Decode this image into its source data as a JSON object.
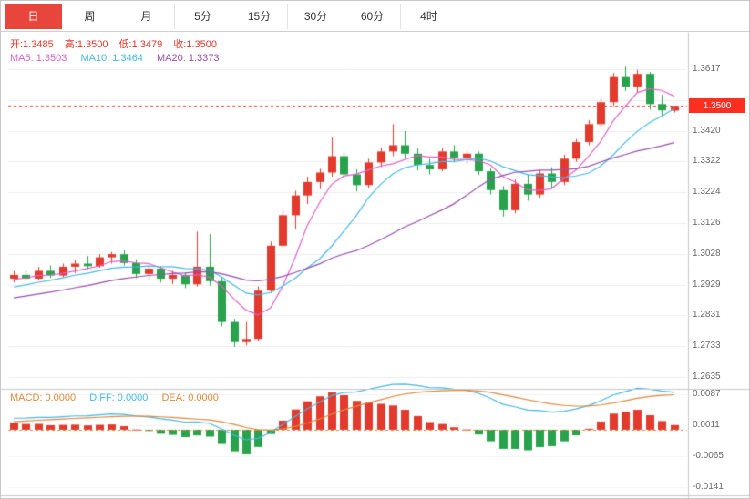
{
  "tabs": {
    "items": [
      {
        "label": "日",
        "selected": true
      },
      {
        "label": "周",
        "selected": false
      },
      {
        "label": "月",
        "selected": false
      },
      {
        "label": "5分",
        "selected": false
      },
      {
        "label": "15分",
        "selected": false
      },
      {
        "label": "30分",
        "selected": false
      },
      {
        "label": "60分",
        "selected": false
      },
      {
        "label": "4时",
        "selected": false
      }
    ]
  },
  "quote": {
    "open": "开:1.3485",
    "high": "高:1.3500",
    "low": "低:1.3479",
    "close": "收:1.3500"
  },
  "ma": {
    "ma5": "MA5: 1.3503",
    "ma10": "MA10: 1.3464",
    "ma20": "MA20: 1.3373"
  },
  "macd_info": {
    "macd": "MACD: 0.0000",
    "diff": "DIFF: 0.0000",
    "dea": "DEA: 0.0000"
  },
  "price_tag": "1.3500",
  "colors": {
    "up": "#e23b2e",
    "down": "#28a24c",
    "ma5": "#e060c8",
    "ma10": "#45b8e8",
    "ma20": "#9a4fae",
    "diff": "#45b8e8",
    "dea": "#e0883a",
    "price_line": "#ff3b2f",
    "grid": "#ededed",
    "divider": "#c8c8c8",
    "tag_bg": "#fe2e21",
    "tab_selected_bg": "#e8453c"
  },
  "chart_data": {
    "type": "candlestick",
    "title": "",
    "price_line_value": 1.35,
    "visible_price_range": [
      1.2635,
      1.3617
    ],
    "price_axis_labels": [
      "1.3617",
      "",
      "1.3420",
      "1.3322",
      "1.3224",
      "1.3126",
      "1.3028",
      "1.2929",
      "1.2831",
      "1.2733",
      "1.2635"
    ],
    "macd_axis_labels": [
      "0.0087",
      "0.0011",
      "-0.0065",
      "-0.0141"
    ],
    "macd_axis_values": [
      0.0087,
      0.0011,
      -0.0065,
      -0.0141
    ],
    "candles": [
      [
        1.295,
        1.2975,
        1.2938,
        1.2962
      ],
      [
        1.2962,
        1.2978,
        1.2942,
        1.295
      ],
      [
        1.295,
        1.2988,
        1.2946,
        1.2975
      ],
      [
        1.2975,
        1.2992,
        1.2952,
        1.296
      ],
      [
        1.296,
        1.2998,
        1.2955,
        1.2988
      ],
      [
        1.2988,
        1.301,
        1.2968,
        1.2998
      ],
      [
        1.2998,
        1.3022,
        1.298,
        1.299
      ],
      [
        1.299,
        1.3028,
        1.2985,
        1.3018
      ],
      [
        1.3018,
        1.3035,
        1.2998,
        1.3028
      ],
      [
        1.3028,
        1.304,
        1.2992,
        1.3
      ],
      [
        1.3,
        1.3012,
        1.2952,
        1.2965
      ],
      [
        1.2965,
        1.2995,
        1.2948,
        1.2982
      ],
      [
        1.2982,
        1.299,
        1.2938,
        1.295
      ],
      [
        1.295,
        1.2975,
        1.2932,
        1.2962
      ],
      [
        1.2962,
        1.297,
        1.292,
        1.2932
      ],
      [
        1.2932,
        1.31,
        1.2925,
        1.2988
      ],
      [
        1.2988,
        1.3092,
        1.2928,
        1.2942
      ],
      [
        1.2942,
        1.2955,
        1.2798,
        1.2812
      ],
      [
        1.2812,
        1.2822,
        1.2733,
        1.2748
      ],
      [
        1.2748,
        1.2812,
        1.2738,
        1.2758
      ],
      [
        1.2758,
        1.2925,
        1.275,
        1.2912
      ],
      [
        1.2912,
        1.3068,
        1.2905,
        1.3055
      ],
      [
        1.3055,
        1.3168,
        1.3048,
        1.3152
      ],
      [
        1.3152,
        1.323,
        1.3108,
        1.3215
      ],
      [
        1.3215,
        1.3275,
        1.3188,
        1.3258
      ],
      [
        1.3258,
        1.33,
        1.3235,
        1.3288
      ],
      [
        1.3288,
        1.34,
        1.3275,
        1.334
      ],
      [
        1.334,
        1.335,
        1.3268,
        1.3282
      ],
      [
        1.3282,
        1.3298,
        1.3228,
        1.3248
      ],
      [
        1.3248,
        1.3332,
        1.3238,
        1.332
      ],
      [
        1.332,
        1.3368,
        1.3305,
        1.3355
      ],
      [
        1.3355,
        1.3442,
        1.334,
        1.3375
      ],
      [
        1.3375,
        1.342,
        1.3332,
        1.3348
      ],
      [
        1.3348,
        1.3365,
        1.3295,
        1.3312
      ],
      [
        1.3312,
        1.3332,
        1.3282,
        1.3298
      ],
      [
        1.3298,
        1.3365,
        1.3292,
        1.3355
      ],
      [
        1.3355,
        1.3375,
        1.332,
        1.3335
      ],
      [
        1.3335,
        1.3358,
        1.3315,
        1.3348
      ],
      [
        1.3348,
        1.3355,
        1.328,
        1.3292
      ],
      [
        1.3292,
        1.3302,
        1.3218,
        1.3232
      ],
      [
        1.3232,
        1.3245,
        1.3148,
        1.3168
      ],
      [
        1.3168,
        1.3265,
        1.3158,
        1.3252
      ],
      [
        1.3252,
        1.3282,
        1.3198,
        1.3218
      ],
      [
        1.3218,
        1.3295,
        1.3208,
        1.3285
      ],
      [
        1.3285,
        1.3305,
        1.324,
        1.3258
      ],
      [
        1.3258,
        1.3345,
        1.3248,
        1.3332
      ],
      [
        1.3332,
        1.3395,
        1.3322,
        1.3385
      ],
      [
        1.3385,
        1.3455,
        1.3375,
        1.3442
      ],
      [
        1.3442,
        1.3525,
        1.3432,
        1.3512
      ],
      [
        1.3512,
        1.3605,
        1.35,
        1.3592
      ],
      [
        1.3592,
        1.3625,
        1.3548,
        1.3562
      ],
      [
        1.3562,
        1.3615,
        1.3542,
        1.3602
      ],
      [
        1.3602,
        1.3608,
        1.3488,
        1.3506
      ],
      [
        1.3506,
        1.3535,
        1.3468,
        1.3486
      ],
      [
        1.3485,
        1.35,
        1.3479,
        1.35
      ]
    ]
  }
}
